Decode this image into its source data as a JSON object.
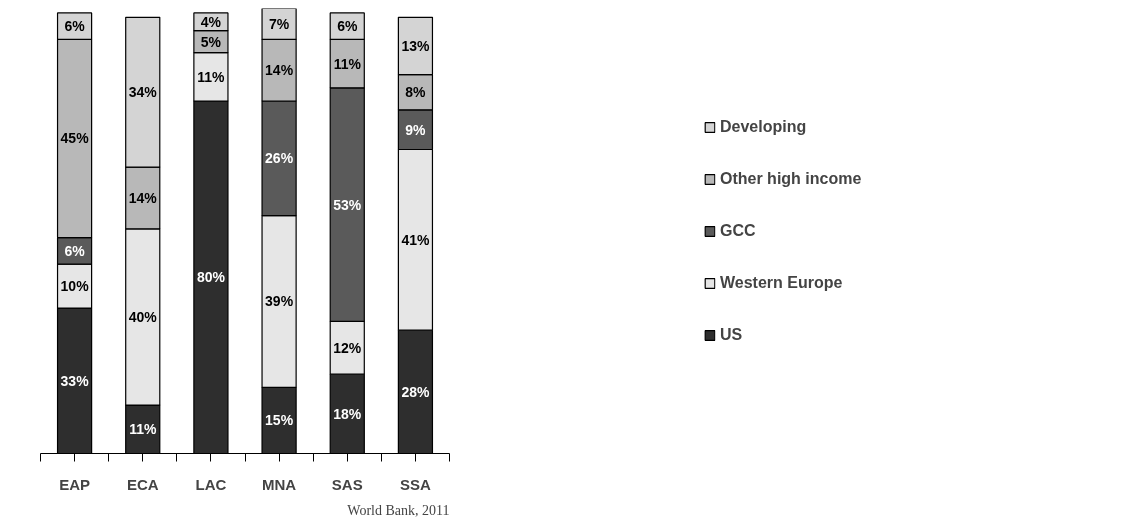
{
  "chart_data": {
    "type": "bar",
    "stacked": true,
    "categories": [
      "EAP",
      "ECA",
      "LAC",
      "MNA",
      "SAS",
      "SSA"
    ],
    "series": [
      {
        "name": "US",
        "color": "#2e2e2e",
        "values": [
          33,
          11,
          80,
          15,
          18,
          28
        ],
        "value_labels": [
          "33%",
          "11%",
          "80%",
          "15%",
          "18%",
          "28%"
        ]
      },
      {
        "name": "Western Europe",
        "color": "#e6e6e6",
        "values": [
          10,
          40,
          11,
          39,
          12,
          41
        ],
        "value_labels": [
          "10%",
          "40%",
          "11%",
          "39%",
          "12%",
          "41%"
        ]
      },
      {
        "name": "GCC",
        "color": "#5a5a5a",
        "values": [
          6,
          null,
          null,
          26,
          53,
          9
        ],
        "value_labels": [
          "6%",
          null,
          null,
          "26%",
          "53%",
          "9%"
        ]
      },
      {
        "name": "Other high income",
        "color": "#b8b8b8",
        "values": [
          45,
          14,
          5,
          14,
          11,
          8
        ],
        "value_labels": [
          "45%",
          "14%",
          "5%",
          "14%",
          "11%",
          "8%"
        ]
      },
      {
        "name": "Developing",
        "color": "#d4d4d4",
        "values": [
          6,
          34,
          4,
          7,
          6,
          13
        ],
        "value_labels": [
          "6%",
          "34%",
          "4%",
          "7%",
          "6%",
          "13%"
        ]
      }
    ],
    "legend": "right",
    "grid": false,
    "tick_labels": "x",
    "annotations": [
      "World Bank, 2011"
    ]
  }
}
